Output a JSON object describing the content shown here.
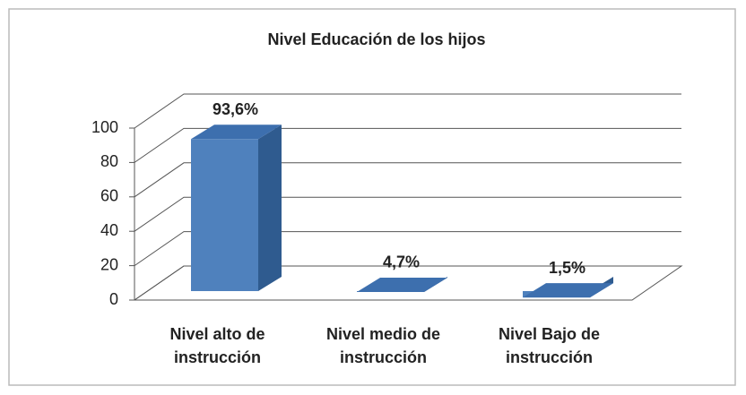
{
  "chart_data": {
    "type": "bar3d",
    "title": "Nivel Educación de los hijos",
    "categories": [
      "Nivel alto de instrucción",
      "Nivel medio de instrucción",
      "Nivel Bajo de instrucción"
    ],
    "values": [
      93.6,
      4.7,
      1.5
    ],
    "value_labels": [
      "93,6%",
      "4,7%",
      "1,5%"
    ],
    "color": "#4f81bd",
    "ylim": [
      0,
      100
    ],
    "yticks": [
      0,
      20,
      40,
      60,
      80,
      100
    ],
    "grid": true
  }
}
